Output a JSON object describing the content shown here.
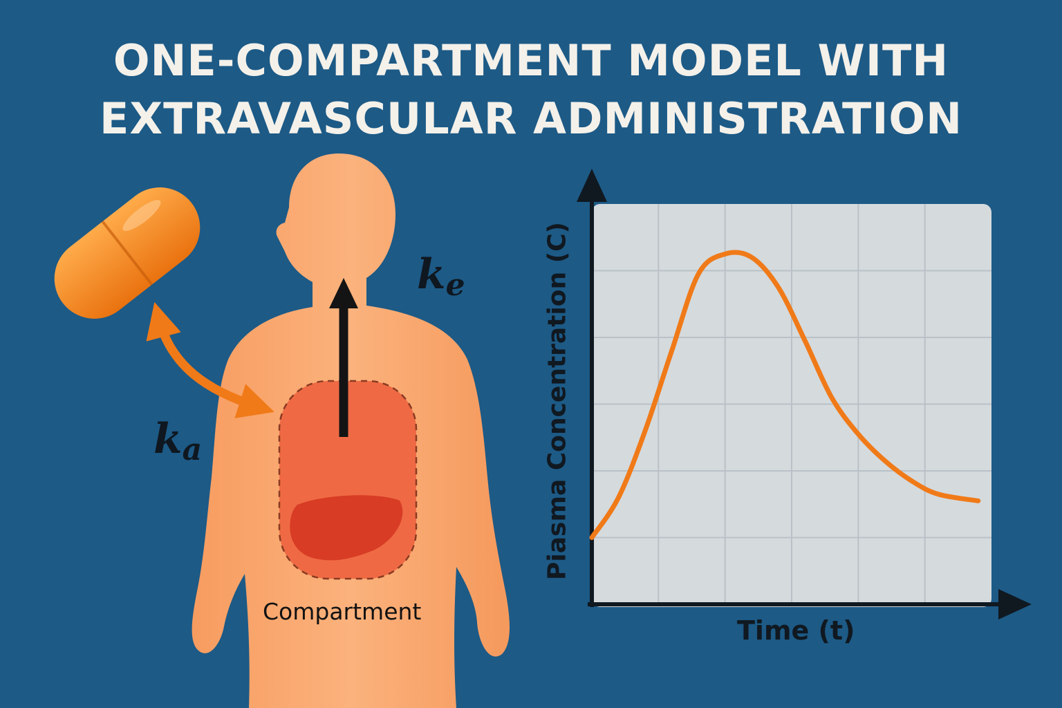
{
  "title": {
    "line1": "ONE-COMPARTMENT MODEL WITH",
    "line2": "EXTRAVASCULAR ADMINISTRATION"
  },
  "labels": {
    "ka_base": "k",
    "ka_sub": "a",
    "ke_base": "k",
    "ke_sub": "e",
    "compartment": "Compartment"
  },
  "chart_data": {
    "type": "line",
    "xlabel": "Time (t)",
    "ylabel": "Piasma Concentration (C)",
    "xlim": [
      0,
      6
    ],
    "ylim": [
      0,
      6
    ],
    "grid": true,
    "x": [
      0,
      0.4,
      0.8,
      1.2,
      1.6,
      2.0,
      2.4,
      2.8,
      3.2,
      3.6,
      4.0,
      4.4,
      4.8,
      5.2,
      5.8
    ],
    "y": [
      1.0,
      1.6,
      2.6,
      3.8,
      4.95,
      5.25,
      5.2,
      4.75,
      3.95,
      3.1,
      2.55,
      2.15,
      1.85,
      1.65,
      1.55
    ]
  },
  "colors": {
    "background": "#1d5a86",
    "curve": "#f07a18",
    "capsule": "#ef861d",
    "body": "#f8a66b",
    "compartment": "#ef6a44",
    "liver": "#d83c25"
  }
}
